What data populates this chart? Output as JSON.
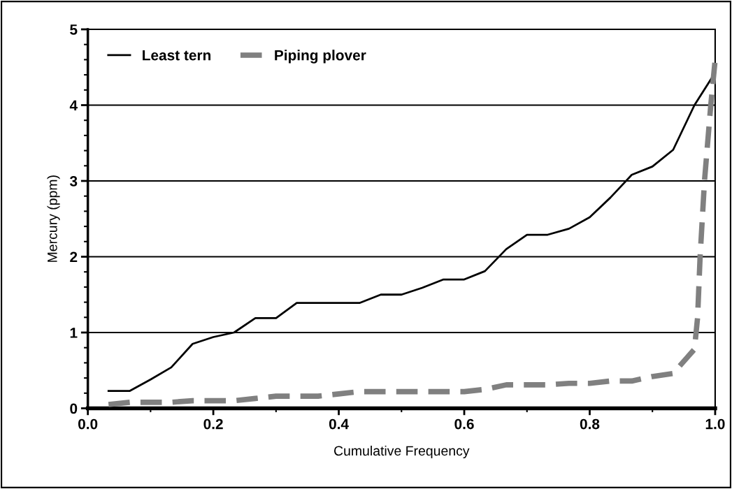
{
  "chart_data": {
    "type": "line",
    "xlabel": "Cumulative Frequency",
    "ylabel": "Mercury (ppm)",
    "xlim": [
      0.0,
      1.0
    ],
    "xticks": [
      {
        "value": 0.0,
        "label": "0.0"
      },
      {
        "value": 0.2,
        "label": "0.2"
      },
      {
        "value": 0.4,
        "label": "0.4"
      },
      {
        "value": 0.6,
        "label": "0.6"
      },
      {
        "value": 0.8,
        "label": "0.8"
      },
      {
        "value": 1.0,
        "label": "1.0"
      }
    ],
    "ylim": [
      0,
      5
    ],
    "yticks": [
      0,
      1,
      2,
      3,
      4,
      5
    ],
    "grid": "y",
    "legend": "top left",
    "series": [
      {
        "name": "Least tern",
        "color": "#000000",
        "line_style": "solid",
        "x": [
          0.033,
          0.067,
          0.1,
          0.133,
          0.167,
          0.2,
          0.233,
          0.267,
          0.3,
          0.333,
          0.367,
          0.4,
          0.433,
          0.467,
          0.5,
          0.533,
          0.567,
          0.6,
          0.633,
          0.667,
          0.7,
          0.733,
          0.767,
          0.8,
          0.833,
          0.867,
          0.9,
          0.933,
          0.967,
          1.0
        ],
        "values": [
          0.23,
          0.23,
          0.38,
          0.54,
          0.85,
          0.94,
          1.0,
          1.19,
          1.19,
          1.39,
          1.39,
          1.39,
          1.39,
          1.5,
          1.5,
          1.59,
          1.7,
          1.7,
          1.81,
          2.1,
          2.29,
          2.29,
          2.37,
          2.52,
          2.78,
          3.08,
          3.19,
          3.41,
          4.0,
          4.43
        ]
      },
      {
        "name": "Piping plover",
        "color": "#808080",
        "line_style": "dashed",
        "x": [
          0.033,
          0.067,
          0.1,
          0.133,
          0.167,
          0.2,
          0.233,
          0.267,
          0.3,
          0.333,
          0.367,
          0.4,
          0.433,
          0.467,
          0.5,
          0.533,
          0.567,
          0.6,
          0.633,
          0.667,
          0.7,
          0.733,
          0.767,
          0.8,
          0.833,
          0.867,
          0.9,
          0.933,
          0.967,
          0.972,
          0.976,
          0.983,
          0.993,
          1.0
        ],
        "values": [
          0.05,
          0.08,
          0.08,
          0.08,
          0.1,
          0.1,
          0.1,
          0.13,
          0.16,
          0.16,
          0.16,
          0.19,
          0.22,
          0.22,
          0.22,
          0.22,
          0.22,
          0.22,
          0.25,
          0.31,
          0.31,
          0.31,
          0.33,
          0.33,
          0.36,
          0.36,
          0.42,
          0.46,
          0.78,
          1.2,
          2.0,
          3.0,
          4.0,
          4.6
        ]
      }
    ]
  }
}
